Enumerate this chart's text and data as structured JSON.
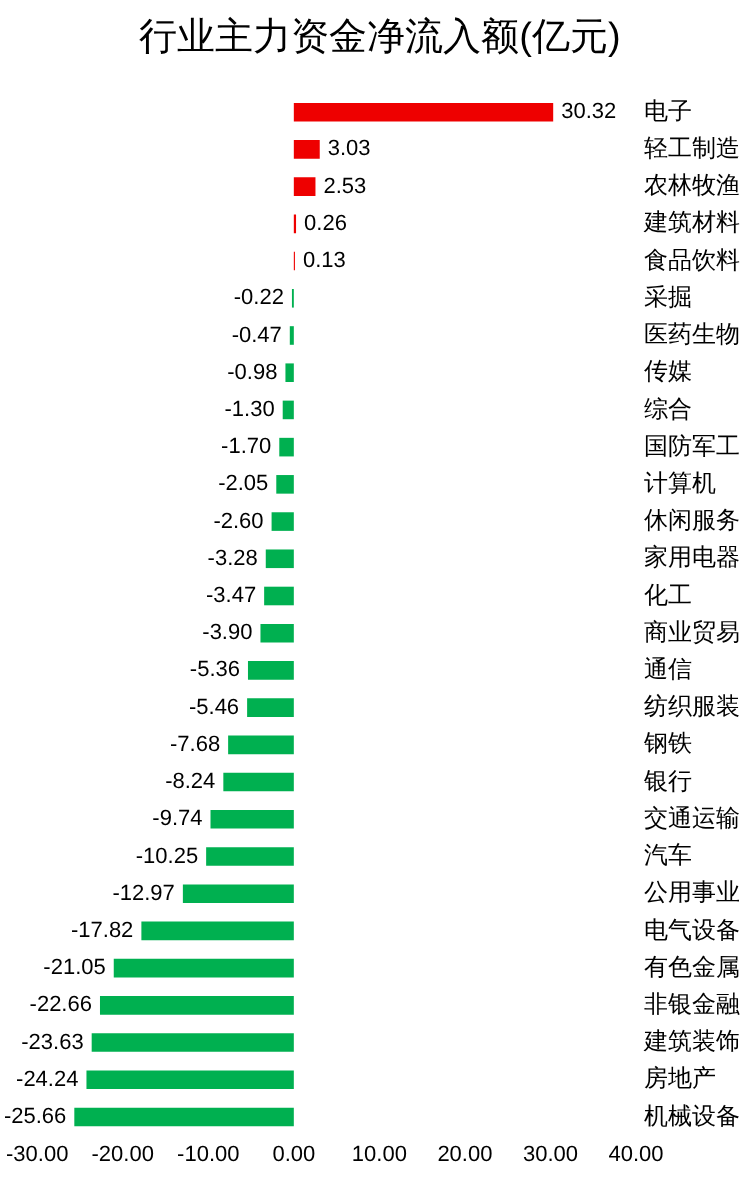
{
  "chart_data": {
    "type": "bar",
    "orientation": "horizontal",
    "title": "行业主力资金净流入额(亿元)",
    "categories": [
      "电子",
      "轻工制造",
      "农林牧渔",
      "建筑材料",
      "食品饮料",
      "采掘",
      "医药生物",
      "传媒",
      "综合",
      "国防军工",
      "计算机",
      "休闲服务",
      "家用电器",
      "化工",
      "商业贸易",
      "通信",
      "纺织服装",
      "钢铁",
      "银行",
      "交通运输",
      "汽车",
      "公用事业",
      "电气设备",
      "有色金属",
      "非银金融",
      "建筑装饰",
      "房地产",
      "机械设备"
    ],
    "values": [
      30.32,
      3.03,
      2.53,
      0.26,
      0.13,
      -0.22,
      -0.47,
      -0.98,
      -1.3,
      -1.7,
      -2.05,
      -2.6,
      -3.28,
      -3.47,
      -3.9,
      -5.36,
      -5.46,
      -7.68,
      -8.24,
      -9.74,
      -10.25,
      -12.97,
      -17.82,
      -21.05,
      -22.66,
      -23.63,
      -24.24,
      -25.66
    ],
    "value_labels": [
      "30.32",
      "3.03",
      "2.53",
      "0.26",
      "0.13",
      "-0.22",
      "-0.47",
      "-0.98",
      "-1.30",
      "-1.70",
      "-2.05",
      "-2.60",
      "-3.28",
      "-3.47",
      "-3.90",
      "-5.36",
      "-5.46",
      "-7.68",
      "-8.24",
      "-9.74",
      "-10.25",
      "-12.97",
      "-17.82",
      "-21.05",
      "-22.66",
      "-23.63",
      "-24.24",
      "-25.66"
    ],
    "colors": [
      "#ee0000",
      "#ee0000",
      "#ee0000",
      "#ee0000",
      "#ee0000",
      "#00b050",
      "#00b050",
      "#00b050",
      "#00b050",
      "#00b050",
      "#00b050",
      "#00b050",
      "#00b050",
      "#00b050",
      "#00b050",
      "#00b050",
      "#00b050",
      "#00b050",
      "#00b050",
      "#00b050",
      "#00b050",
      "#00b050",
      "#00b050",
      "#00b050",
      "#00b050",
      "#00b050",
      "#00b050",
      "#00b050"
    ],
    "xlim": [
      -30,
      40
    ],
    "xticks": [
      {
        "value": -30,
        "label": "-30.00"
      },
      {
        "value": -20,
        "label": "-20.00"
      },
      {
        "value": -10,
        "label": "-10.00"
      },
      {
        "value": 0,
        "label": "0.00"
      },
      {
        "value": 10,
        "label": "10.00"
      },
      {
        "value": 20,
        "label": "20.00"
      },
      {
        "value": 30,
        "label": "30.00"
      },
      {
        "value": 40,
        "label": "40.00"
      }
    ],
    "grid": false,
    "legend": false
  }
}
